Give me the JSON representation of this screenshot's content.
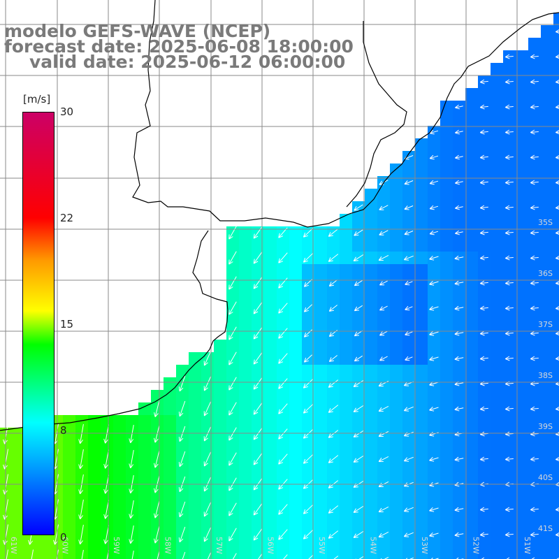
{
  "title": {
    "line1": "modelo GEFS-WAVE (NCEP)",
    "line2": "forecast date: 2025-06-08 18:00:00",
    "line3": "valid date: 2025-06-12 06:00:00"
  },
  "colorbar": {
    "unit": "[m/s]",
    "ticks": [
      {
        "label": "30",
        "value": 30
      },
      {
        "label": "22",
        "value": 22
      },
      {
        "label": "15",
        "value": 15
      },
      {
        "label": "8",
        "value": 8
      },
      {
        "label": "0",
        "value": 0
      }
    ]
  },
  "axes": {
    "lon_labels": [
      "61W",
      "60W",
      "59W",
      "58W",
      "57W",
      "56W",
      "55W",
      "54W",
      "53W",
      "52W",
      "51W"
    ],
    "lat_labels": [
      "35S",
      "36S",
      "37S",
      "38S",
      "39S",
      "40S",
      "41S"
    ]
  },
  "colors": {
    "grid": "#8a8a8a",
    "coast": "#000000",
    "title": "#7a7a7a",
    "arrow": "#ffffff"
  }
}
